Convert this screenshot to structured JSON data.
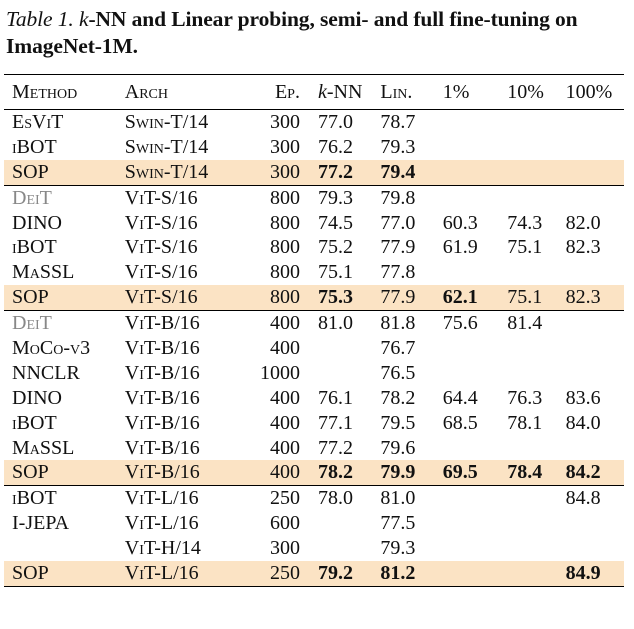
{
  "caption": {
    "label": "Table 1.",
    "k_italic": "k",
    "text": "-NN and Linear probing, semi- and full fine-tuning on ImageNet-1M."
  },
  "headers": [
    "Method",
    "Arch",
    "Ep.",
    "k-NN",
    "Lin.",
    "1%",
    "10%",
    "100%"
  ],
  "rows": [
    {
      "method": "EsViT",
      "arch": "Swin-T/14",
      "ep": "300",
      "knn": "77.0",
      "lin": "78.7",
      "p1": "",
      "p10": "",
      "p100": ""
    },
    {
      "method": "iBOT",
      "arch": "Swin-T/14",
      "ep": "300",
      "knn": "76.2",
      "lin": "79.3",
      "p1": "",
      "p10": "",
      "p100": ""
    },
    {
      "method": "SOP",
      "arch": "Swin-T/14",
      "ep": "300",
      "knn": "77.2",
      "lin": "79.4",
      "p1": "",
      "p10": "",
      "p100": ""
    },
    {
      "method": "DeiT",
      "arch": "ViT-S/16",
      "ep": "800",
      "knn": "79.3",
      "lin": "79.8",
      "p1": "",
      "p10": "",
      "p100": ""
    },
    {
      "method": "DINO",
      "arch": "ViT-S/16",
      "ep": "800",
      "knn": "74.5",
      "lin": "77.0",
      "p1": "60.3",
      "p10": "74.3",
      "p100": "82.0"
    },
    {
      "method": "iBOT",
      "arch": "ViT-S/16",
      "ep": "800",
      "knn": "75.2",
      "lin": "77.9",
      "p1": "61.9",
      "p10": "75.1",
      "p100": "82.3"
    },
    {
      "method": "MaSSL",
      "arch": "ViT-S/16",
      "ep": "800",
      "knn": "75.1",
      "lin": "77.8",
      "p1": "",
      "p10": "",
      "p100": ""
    },
    {
      "method": "SOP",
      "arch": "ViT-S/16",
      "ep": "800",
      "knn": "75.3",
      "lin": "77.9",
      "p1": "62.1",
      "p10": "75.1",
      "p100": "82.3"
    },
    {
      "method": "DeiT",
      "arch": "ViT-B/16",
      "ep": "400",
      "knn": "81.0",
      "lin": "81.8",
      "p1": "75.6",
      "p10": "81.4",
      "p100": ""
    },
    {
      "method": "MoCo-v3",
      "arch": "ViT-B/16",
      "ep": "400",
      "knn": "",
      "lin": "76.7",
      "p1": "",
      "p10": "",
      "p100": ""
    },
    {
      "method": "NNCLR",
      "arch": "ViT-B/16",
      "ep": "1000",
      "knn": "",
      "lin": "76.5",
      "p1": "",
      "p10": "",
      "p100": ""
    },
    {
      "method": "DINO",
      "arch": "ViT-B/16",
      "ep": "400",
      "knn": "76.1",
      "lin": "78.2",
      "p1": "64.4",
      "p10": "76.3",
      "p100": "83.6"
    },
    {
      "method": "iBOT",
      "arch": "ViT-B/16",
      "ep": "400",
      "knn": "77.1",
      "lin": "79.5",
      "p1": "68.5",
      "p10": "78.1",
      "p100": "84.0"
    },
    {
      "method": "MaSSL",
      "arch": "ViT-B/16",
      "ep": "400",
      "knn": "77.2",
      "lin": "79.6",
      "p1": "",
      "p10": "",
      "p100": ""
    },
    {
      "method": "SOP",
      "arch": "ViT-B/16",
      "ep": "400",
      "knn": "78.2",
      "lin": "79.9",
      "p1": "69.5",
      "p10": "78.4",
      "p100": "84.2"
    },
    {
      "method": "iBOT",
      "arch": "ViT-L/16",
      "ep": "250",
      "knn": "78.0",
      "lin": "81.0",
      "p1": "",
      "p10": "",
      "p100": "84.8"
    },
    {
      "method": "I-JEPA",
      "arch": "ViT-L/16",
      "ep": "600",
      "knn": "",
      "lin": "77.5",
      "p1": "",
      "p10": "",
      "p100": ""
    },
    {
      "method": "",
      "arch": "ViT-H/14",
      "ep": "300",
      "knn": "",
      "lin": "79.3",
      "p1": "",
      "p10": "",
      "p100": ""
    },
    {
      "method": "SOP",
      "arch": "ViT-L/16",
      "ep": "250",
      "knn": "79.2",
      "lin": "81.2",
      "p1": "",
      "p10": "",
      "p100": "84.9"
    }
  ],
  "highlight_color": "#fbe3c4",
  "gray_method_color": "#888888"
}
